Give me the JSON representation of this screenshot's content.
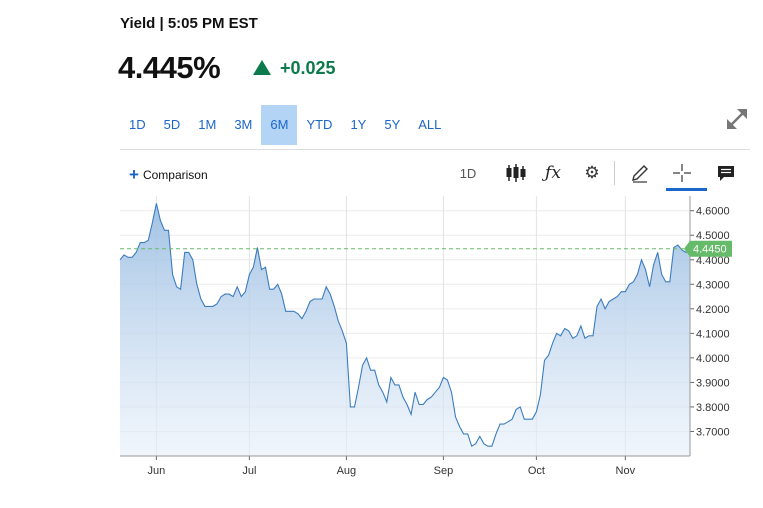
{
  "header": {
    "yield_label": "Yield | 5:05 PM EST",
    "price": "4.445%",
    "change": "+0.025"
  },
  "colors": {
    "up": "#0c7a4a",
    "accent": "#1b66c9",
    "active_tab_bg": "#b3d4f5",
    "line": "#3c7dbf",
    "last_price_badge": "#66bb6a"
  },
  "range_tabs": [
    {
      "label": "1D",
      "active": false
    },
    {
      "label": "5D",
      "active": false
    },
    {
      "label": "1M",
      "active": false
    },
    {
      "label": "3M",
      "active": false
    },
    {
      "label": "6M",
      "active": true
    },
    {
      "label": "YTD",
      "active": false
    },
    {
      "label": "1Y",
      "active": false
    },
    {
      "label": "5Y",
      "active": false
    },
    {
      "label": "ALL",
      "active": false
    }
  ],
  "toolbar": {
    "comparison_label": "Comparison",
    "interval_label": "1D",
    "icons": [
      "expand-icon",
      "candlestick-icon",
      "function-icon",
      "gear-icon",
      "pencil-icon",
      "crosshair-icon",
      "notes-icon"
    ]
  },
  "chart_data": {
    "type": "area",
    "x_ticks": [
      "Jun",
      "Jul",
      "Aug",
      "Sep",
      "Oct",
      "Nov"
    ],
    "y_ticks": [
      "4.6000",
      "4.5000",
      "4.4000",
      "4.3000",
      "4.2000",
      "4.1000",
      "4.0000",
      "3.9000",
      "3.8000",
      "3.7000"
    ],
    "ylim": [
      3.6,
      4.66
    ],
    "last_value_label": "4.4450",
    "last_value": 4.445,
    "grid": true,
    "values": [
      4.4,
      4.42,
      4.41,
      4.41,
      4.43,
      4.47,
      4.47,
      4.48,
      4.55,
      4.63,
      4.56,
      4.52,
      4.52,
      4.34,
      4.29,
      4.28,
      4.43,
      4.43,
      4.4,
      4.3,
      4.24,
      4.21,
      4.21,
      4.21,
      4.22,
      4.25,
      4.26,
      4.26,
      4.25,
      4.29,
      4.25,
      4.27,
      4.34,
      4.37,
      4.45,
      4.36,
      4.37,
      4.28,
      4.28,
      4.3,
      4.26,
      4.19,
      4.19,
      4.19,
      4.18,
      4.16,
      4.19,
      4.23,
      4.24,
      4.24,
      4.24,
      4.29,
      4.26,
      4.21,
      4.15,
      4.11,
      4.06,
      3.8,
      3.8,
      3.88,
      3.97,
      4.0,
      3.95,
      3.95,
      3.89,
      3.86,
      3.82,
      3.92,
      3.89,
      3.89,
      3.84,
      3.81,
      3.77,
      3.86,
      3.81,
      3.81,
      3.83,
      3.84,
      3.86,
      3.88,
      3.92,
      3.91,
      3.86,
      3.76,
      3.72,
      3.69,
      3.69,
      3.64,
      3.65,
      3.68,
      3.65,
      3.64,
      3.64,
      3.69,
      3.73,
      3.73,
      3.74,
      3.75,
      3.79,
      3.8,
      3.75,
      3.75,
      3.75,
      3.78,
      3.85,
      3.99,
      4.01,
      4.06,
      4.1,
      4.09,
      4.12,
      4.11,
      4.08,
      4.09,
      4.13,
      4.08,
      4.09,
      4.09,
      4.21,
      4.24,
      4.2,
      4.23,
      4.24,
      4.25,
      4.27,
      4.27,
      4.3,
      4.31,
      4.34,
      4.4,
      4.36,
      4.29,
      4.38,
      4.43,
      4.34,
      4.31,
      4.31,
      4.45,
      4.46,
      4.44,
      4.43,
      4.445
    ]
  }
}
